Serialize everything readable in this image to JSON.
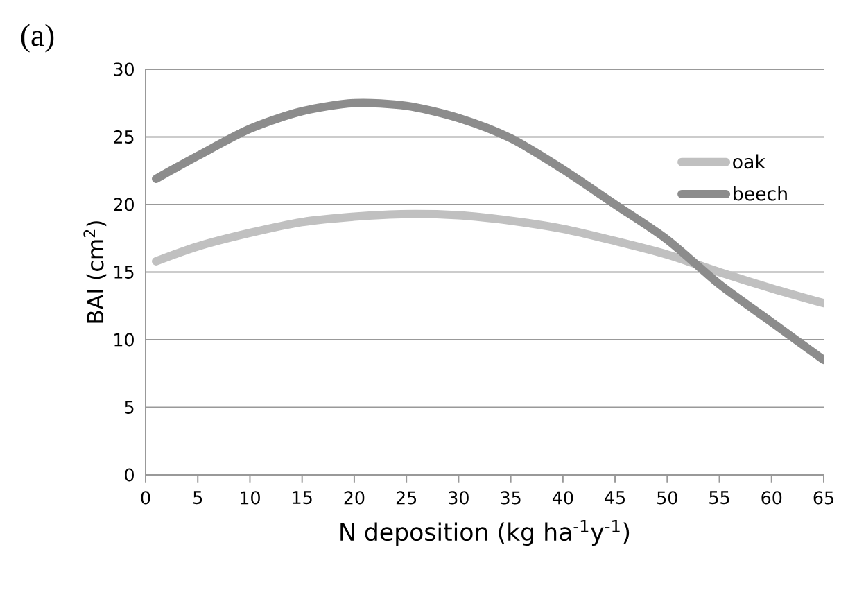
{
  "chart_data": {
    "type": "line",
    "title": "(a)",
    "xlabel": "N deposition (kg ha$^{-1}$y$^{-1}$)",
    "ylabel": "BAI (cm$^{2}$)",
    "x": [
      1,
      5,
      10,
      15,
      20,
      25,
      30,
      35,
      40,
      45,
      50,
      55,
      60,
      65
    ],
    "series": [
      {
        "name": "oak",
        "color": "#c0c0c0",
        "values": [
          15.8,
          16.9,
          17.9,
          18.7,
          19.1,
          19.3,
          19.2,
          18.8,
          18.2,
          17.3,
          16.3,
          15.0,
          13.8,
          12.7
        ]
      },
      {
        "name": "beech",
        "color": "#8c8c8c",
        "values": [
          21.9,
          23.6,
          25.6,
          26.9,
          27.5,
          27.3,
          26.4,
          24.9,
          22.6,
          20.0,
          17.4,
          14.1,
          11.3,
          8.5
        ]
      }
    ],
    "xlim": [
      0,
      65
    ],
    "ylim": [
      0,
      30
    ],
    "xticks": [
      0,
      5,
      10,
      15,
      20,
      25,
      30,
      35,
      40,
      45,
      50,
      55,
      60,
      65
    ],
    "yticks": [
      0,
      5,
      10,
      15,
      20,
      25,
      30
    ],
    "grid": "y",
    "legend": "right",
    "marker": "none",
    "line_style": "solid"
  }
}
